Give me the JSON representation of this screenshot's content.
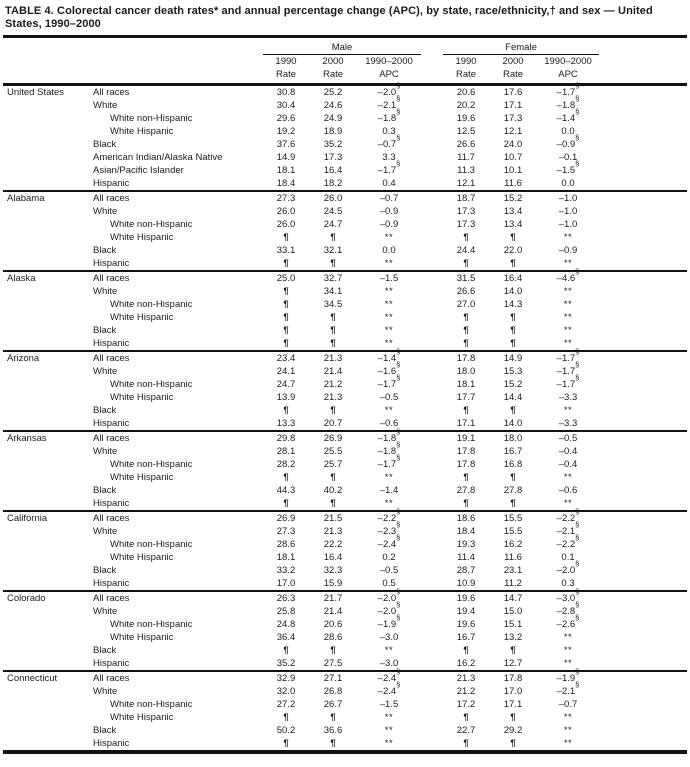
{
  "title": "TABLE 4.  Colorectal cancer death rates* and annual percentage change (APC), by state, race/ethnicity,† and sex — United States, 1990–2000",
  "header": {
    "male_label": "Male",
    "female_label": "Female",
    "sub": {
      "y1990": "1990",
      "y2000": "2000",
      "range": "1990–2000",
      "rate": "Rate",
      "apc": "APC"
    }
  },
  "symbols": {
    "suppressed_rate": "¶",
    "suppressed_apc": "**",
    "significant": "§"
  },
  "sections": [
    {
      "state": "United States",
      "rows": [
        {
          "race": "All races",
          "indent": 0,
          "values": [
            "30.8",
            "25.2",
            "–2.0§",
            "20.6",
            "17.6",
            "–1.7§"
          ]
        },
        {
          "race": "White",
          "indent": 0,
          "values": [
            "30.4",
            "24.6",
            "–2.1§",
            "20.2",
            "17.1",
            "–1.8§"
          ]
        },
        {
          "race": "White non-Hispanic",
          "indent": 1,
          "values": [
            "29.6",
            "24.9",
            "–1.8§",
            "19.6",
            "17.3",
            "–1.4§"
          ]
        },
        {
          "race": "White Hispanic",
          "indent": 1,
          "values": [
            "19.2",
            "18.9",
            "0.3",
            "12.5",
            "12.1",
            "0.0"
          ]
        },
        {
          "race": "Black",
          "indent": 0,
          "values": [
            "37.6",
            "35.2",
            "–0.7§",
            "26.6",
            "24.0",
            "–0.9§"
          ]
        },
        {
          "race": "American Indian/Alaska Native",
          "indent": 0,
          "values": [
            "14.9",
            "17.3",
            "3.3",
            "11.7",
            "10.7",
            "–0.1"
          ]
        },
        {
          "race": "Asian/Pacific Islander",
          "indent": 0,
          "values": [
            "18.1",
            "16.4",
            "–1.7§",
            "11.3",
            "10.1",
            "–1.5§"
          ]
        },
        {
          "race": "Hispanic",
          "indent": 0,
          "values": [
            "18.4",
            "18.2",
            "0.4",
            "12.1",
            "11.6",
            "0.0"
          ]
        }
      ]
    },
    {
      "state": "Alabama",
      "rows": [
        {
          "race": "All races",
          "indent": 0,
          "values": [
            "27.3",
            "26.0",
            "–0.7",
            "18.7",
            "15.2",
            "–1.0"
          ]
        },
        {
          "race": "White",
          "indent": 0,
          "values": [
            "26.0",
            "24.5",
            "–0.9",
            "17.3",
            "13.4",
            "–1.0"
          ]
        },
        {
          "race": "White non-Hispanic",
          "indent": 1,
          "values": [
            "26.0",
            "24.7",
            "–0.9",
            "17.3",
            "13.4",
            "–1.0"
          ]
        },
        {
          "race": "White Hispanic",
          "indent": 1,
          "values": [
            "¶",
            "¶",
            "**",
            "¶",
            "¶",
            "**"
          ]
        },
        {
          "race": "Black",
          "indent": 0,
          "values": [
            "33.1",
            "32.1",
            "0.0",
            "24.4",
            "22.0",
            "–0.9"
          ]
        },
        {
          "race": "Hispanic",
          "indent": 0,
          "values": [
            "¶",
            "¶",
            "**",
            "¶",
            "¶",
            "**"
          ]
        }
      ]
    },
    {
      "state": "Alaska",
      "rows": [
        {
          "race": "All races",
          "indent": 0,
          "values": [
            "25.0",
            "32.7",
            "–1.5",
            "31.5",
            "16.4",
            "–4.6§"
          ]
        },
        {
          "race": "White",
          "indent": 0,
          "values": [
            "¶",
            "34.1",
            "**",
            "26.6",
            "14.0",
            "**"
          ]
        },
        {
          "race": "White non-Hispanic",
          "indent": 1,
          "values": [
            "¶",
            "34.5",
            "**",
            "27.0",
            "14.3",
            "**"
          ]
        },
        {
          "race": "White Hispanic",
          "indent": 1,
          "values": [
            "¶",
            "¶",
            "**",
            "¶",
            "¶",
            "**"
          ]
        },
        {
          "race": "Black",
          "indent": 0,
          "values": [
            "¶",
            "¶",
            "**",
            "¶",
            "¶",
            "**"
          ]
        },
        {
          "race": "Hispanic",
          "indent": 0,
          "values": [
            "¶",
            "¶",
            "**",
            "¶",
            "¶",
            "**"
          ]
        }
      ]
    },
    {
      "state": "Arizona",
      "rows": [
        {
          "race": "All races",
          "indent": 0,
          "values": [
            "23.4",
            "21.3",
            "–1.4§",
            "17.8",
            "14.9",
            "–1.7§"
          ]
        },
        {
          "race": "White",
          "indent": 0,
          "values": [
            "24.1",
            "21.4",
            "–1.6§",
            "18.0",
            "15.3",
            "–1.7§"
          ]
        },
        {
          "race": "White non-Hispanic",
          "indent": 1,
          "values": [
            "24.7",
            "21.2",
            "–1.7§",
            "18.1",
            "15.2",
            "–1.7§"
          ]
        },
        {
          "race": "White Hispanic",
          "indent": 1,
          "values": [
            "13.9",
            "21.3",
            "–0.5",
            "17.7",
            "14.4",
            "–3.3"
          ]
        },
        {
          "race": "Black",
          "indent": 0,
          "values": [
            "¶",
            "¶",
            "**",
            "¶",
            "¶",
            "**"
          ]
        },
        {
          "race": "Hispanic",
          "indent": 0,
          "values": [
            "13.3",
            "20.7",
            "–0.6",
            "17.1",
            "14.0",
            "–3.3"
          ]
        }
      ]
    },
    {
      "state": "Arkansas",
      "rows": [
        {
          "race": "All races",
          "indent": 0,
          "values": [
            "29.8",
            "26.9",
            "–1.8§",
            "19.1",
            "18.0",
            "–0.5"
          ]
        },
        {
          "race": "White",
          "indent": 0,
          "values": [
            "28.1",
            "25.5",
            "–1.8§",
            "17.8",
            "16.7",
            "–0.4"
          ]
        },
        {
          "race": "White non-Hispanic",
          "indent": 1,
          "values": [
            "28.2",
            "25.7",
            "–1.7§",
            "17.8",
            "16.8",
            "–0.4"
          ]
        },
        {
          "race": "White Hispanic",
          "indent": 1,
          "values": [
            "¶",
            "¶",
            "**",
            "¶",
            "¶",
            "**"
          ]
        },
        {
          "race": "Black",
          "indent": 0,
          "values": [
            "44.3",
            "40.2",
            "–1.4",
            "27.8",
            "27.8",
            "–0.6"
          ]
        },
        {
          "race": "Hispanic",
          "indent": 0,
          "values": [
            "¶",
            "¶",
            "**",
            "¶",
            "¶",
            "**"
          ]
        }
      ]
    },
    {
      "state": "California",
      "rows": [
        {
          "race": "All races",
          "indent": 0,
          "values": [
            "26.9",
            "21.5",
            "–2.2§",
            "18.6",
            "15.5",
            "–2.2§"
          ]
        },
        {
          "race": "White",
          "indent": 0,
          "values": [
            "27.3",
            "21.3",
            "–2.3§",
            "18.4",
            "15.5",
            "–2.1§"
          ]
        },
        {
          "race": "White non-Hispanic",
          "indent": 1,
          "values": [
            "28.6",
            "22.2",
            "–2.4§",
            "19.3",
            "16.2",
            "–2.2§"
          ]
        },
        {
          "race": "White Hispanic",
          "indent": 1,
          "values": [
            "18.1",
            "16.4",
            "0.2",
            "11.4",
            "11.6",
            "0.1"
          ]
        },
        {
          "race": "Black",
          "indent": 0,
          "values": [
            "33.2",
            "32.3",
            "–0.5",
            "28.7",
            "23.1",
            "–2.0§"
          ]
        },
        {
          "race": "Hispanic",
          "indent": 0,
          "values": [
            "17.0",
            "15.9",
            "0.5",
            "10.9",
            "11.2",
            "0.3"
          ]
        }
      ]
    },
    {
      "state": "Colorado",
      "rows": [
        {
          "race": "All races",
          "indent": 0,
          "values": [
            "26.3",
            "21.7",
            "–2.0§",
            "19.6",
            "14.7",
            "–3.0§"
          ]
        },
        {
          "race": "White",
          "indent": 0,
          "values": [
            "25.8",
            "21.4",
            "–2.0§",
            "19.4",
            "15.0",
            "–2.8§"
          ]
        },
        {
          "race": "White non-Hispanic",
          "indent": 1,
          "values": [
            "24.8",
            "20.6",
            "–1.9§",
            "19.6",
            "15.1",
            "–2.6§"
          ]
        },
        {
          "race": "White Hispanic",
          "indent": 1,
          "values": [
            "36.4",
            "28.6",
            "–3.0",
            "16.7",
            "13.2",
            "**"
          ]
        },
        {
          "race": "Black",
          "indent": 0,
          "values": [
            "¶",
            "¶",
            "**",
            "¶",
            "¶",
            "**"
          ]
        },
        {
          "race": "Hispanic",
          "indent": 0,
          "values": [
            "35.2",
            "27.5",
            "–3.0",
            "16.2",
            "12.7",
            "**"
          ]
        }
      ]
    },
    {
      "state": "Connecticut",
      "rows": [
        {
          "race": "All races",
          "indent": 0,
          "values": [
            "32.9",
            "27.1",
            "–2.4§",
            "21.3",
            "17.8",
            "–1.9§"
          ]
        },
        {
          "race": "White",
          "indent": 0,
          "values": [
            "32.0",
            "26.8",
            "–2.4§",
            "21.2",
            "17.0",
            "–2.1§"
          ]
        },
        {
          "race": "White non-Hispanic",
          "indent": 1,
          "values": [
            "27.2",
            "26.7",
            "–1.5",
            "17.2",
            "17.1",
            "–0.7"
          ]
        },
        {
          "race": "White Hispanic",
          "indent": 1,
          "values": [
            "¶",
            "¶",
            "**",
            "¶",
            "¶",
            "**"
          ]
        },
        {
          "race": "Black",
          "indent": 0,
          "values": [
            "50.2",
            "36.6",
            "**",
            "22.7",
            "29.2",
            "**"
          ]
        },
        {
          "race": "Hispanic",
          "indent": 0,
          "values": [
            "¶",
            "¶",
            "**",
            "¶",
            "¶",
            "**"
          ]
        }
      ]
    }
  ]
}
